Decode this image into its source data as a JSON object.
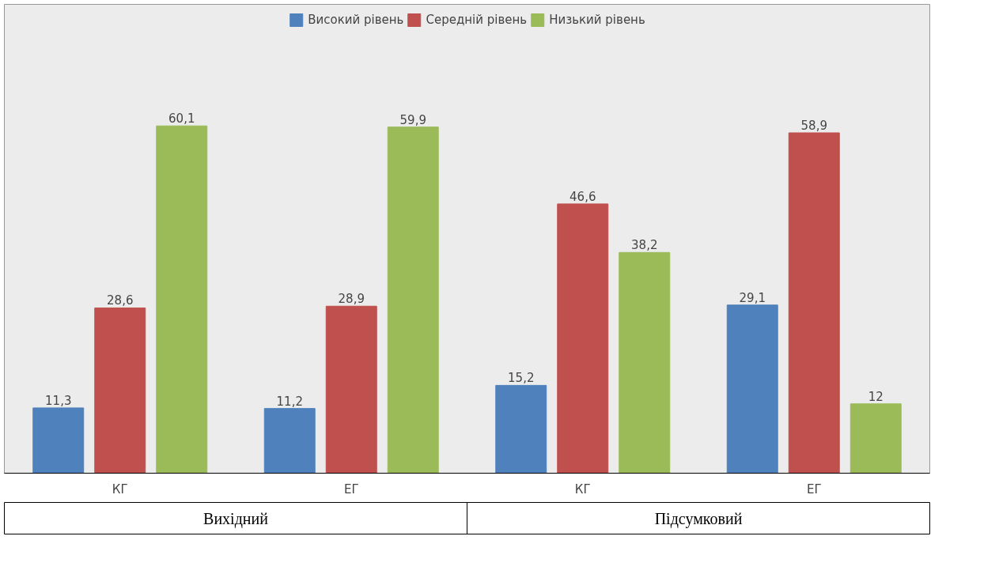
{
  "chart_data": {
    "type": "bar",
    "categories": [
      "КГ",
      "ЕГ",
      "КГ",
      "ЕГ"
    ],
    "series": [
      {
        "name": "Високий рівень",
        "color": "#4f81bd",
        "values": [
          11.3,
          11.2,
          15.2,
          29.1
        ],
        "value_labels": [
          "11,3",
          "11,2",
          "15,2",
          "29,1"
        ]
      },
      {
        "name": "Середній рівень",
        "color": "#c0504d",
        "values": [
          28.6,
          28.9,
          46.6,
          58.9
        ],
        "value_labels": [
          "28,6",
          "28,9",
          "46,6",
          "58,9"
        ]
      },
      {
        "name": "Низький рівень",
        "color": "#9bbb59",
        "values": [
          60.1,
          59.9,
          38.2,
          12
        ],
        "value_labels": [
          "60,1",
          "59,9",
          "38,2",
          "12"
        ]
      }
    ],
    "legend": "top",
    "grid": false,
    "annotations": [
      "Вихідний",
      "Підсумковий"
    ]
  }
}
